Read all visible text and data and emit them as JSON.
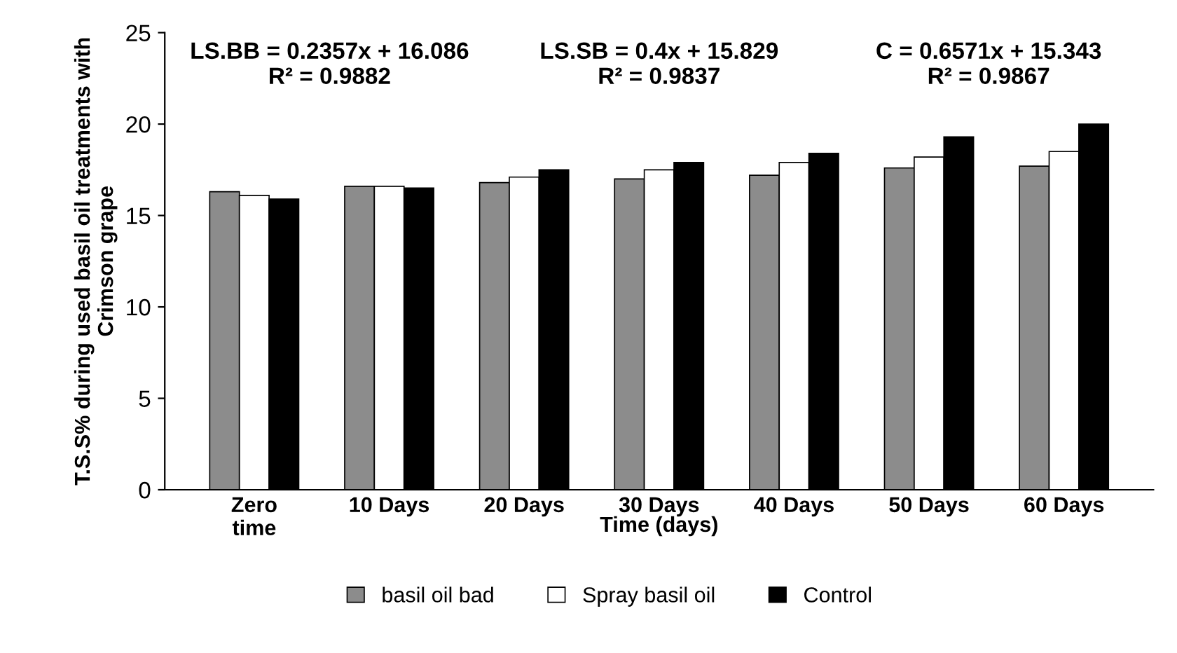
{
  "chart_data": {
    "type": "bar",
    "xlabel": "Time (days)",
    "ylabel": "T.S.S% during used basil oil treatments with Crimson grape",
    "categories": [
      "Zero time",
      "10 Days",
      "20 Days",
      "30 Days",
      "40 Days",
      "50 Days",
      "60 Days"
    ],
    "series": [
      {
        "name": "basil oil bad",
        "color": "#8c8c8c",
        "values": [
          16.3,
          16.6,
          16.8,
          17.0,
          17.2,
          17.6,
          17.7
        ]
      },
      {
        "name": "Spray basil oil",
        "color": "#ffffff",
        "values": [
          16.1,
          16.6,
          17.1,
          17.5,
          17.9,
          18.2,
          18.5
        ]
      },
      {
        "name": "Control",
        "color": "#000000",
        "values": [
          15.9,
          16.5,
          17.5,
          17.9,
          18.4,
          19.3,
          20.0
        ]
      }
    ],
    "annotations": [
      "LS.BB = 0.2357x + 16.086\nR² = 0.9882",
      "LS.SB = 0.4x + 15.829\nR² = 0.9837",
      "C = 0.6571x + 15.343\nR² = 0.9867"
    ],
    "ylim": [
      0,
      25
    ],
    "yticks": [
      0,
      5,
      10,
      15,
      20,
      25
    ],
    "grid": false,
    "legend": "bottom"
  }
}
